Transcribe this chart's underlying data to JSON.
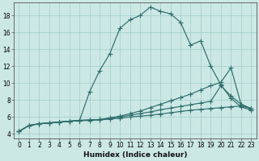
{
  "xlabel": "Humidex (Indice chaleur)",
  "bg_color": "#cce8e5",
  "grid_color": "#a0ccc8",
  "line_color": "#2d6e6b",
  "xlim": [
    -0.5,
    23.5
  ],
  "ylim": [
    3.5,
    19.5
  ],
  "xticks": [
    0,
    1,
    2,
    3,
    4,
    5,
    6,
    7,
    8,
    9,
    10,
    11,
    12,
    13,
    14,
    15,
    16,
    17,
    18,
    19,
    20,
    21,
    22,
    23
  ],
  "yticks": [
    4,
    6,
    8,
    10,
    12,
    14,
    16,
    18
  ],
  "line1_y": [
    4.3,
    5.0,
    5.2,
    5.3,
    5.4,
    5.5,
    5.6,
    9.0,
    11.5,
    13.5,
    16.5,
    17.5,
    18.0,
    19.0,
    18.5,
    18.2,
    17.2,
    14.5,
    15.0,
    12.0,
    9.8,
    8.2,
    7.2,
    6.8
  ],
  "line2_y": [
    4.3,
    5.0,
    5.2,
    5.3,
    5.4,
    5.5,
    5.6,
    5.65,
    5.7,
    5.9,
    6.1,
    6.4,
    6.7,
    7.1,
    7.5,
    7.9,
    8.3,
    8.7,
    9.2,
    9.7,
    10.1,
    11.8,
    7.5,
    7.0
  ],
  "line3_y": [
    4.3,
    5.0,
    5.2,
    5.3,
    5.4,
    5.5,
    5.6,
    5.65,
    5.7,
    5.85,
    6.0,
    6.2,
    6.4,
    6.6,
    6.85,
    7.05,
    7.25,
    7.45,
    7.65,
    7.85,
    9.7,
    8.5,
    7.5,
    7.0
  ],
  "line4_y": [
    4.3,
    5.0,
    5.2,
    5.3,
    5.4,
    5.5,
    5.55,
    5.6,
    5.65,
    5.75,
    5.85,
    6.0,
    6.1,
    6.2,
    6.35,
    6.5,
    6.65,
    6.8,
    6.9,
    7.0,
    7.1,
    7.2,
    7.3,
    7.0
  ]
}
